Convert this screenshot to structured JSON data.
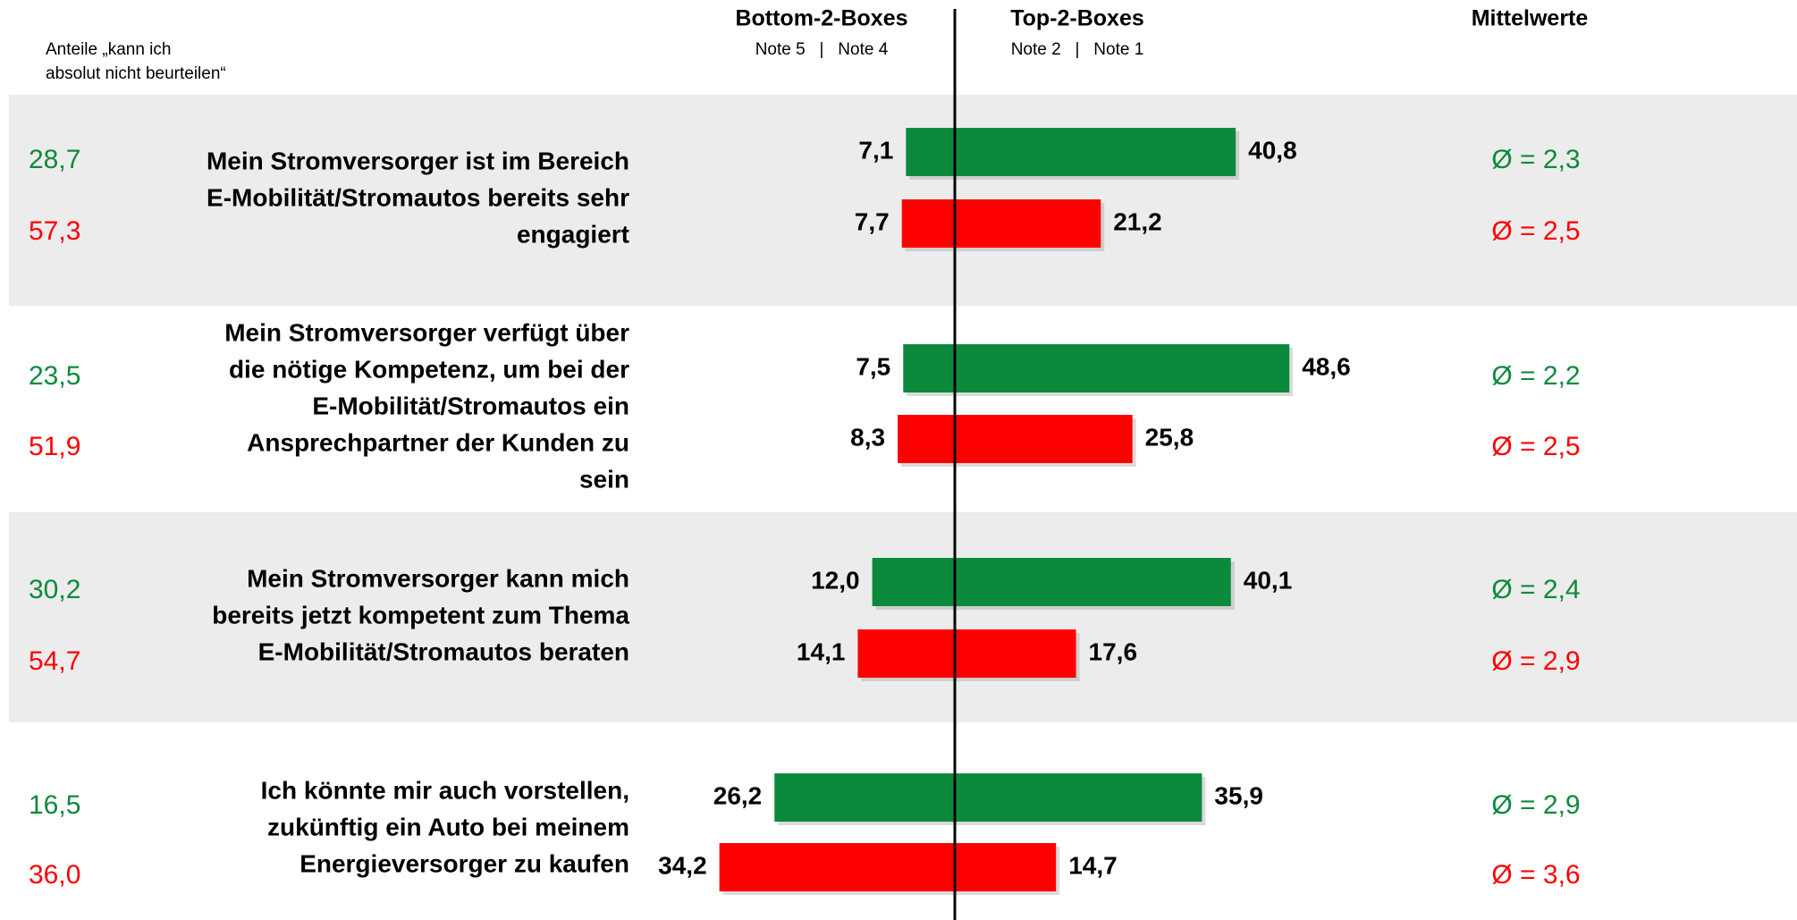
{
  "chart_data": {
    "type": "diverging_bar",
    "note": "Anteile „kann ich absolut nicht beurteilen“",
    "note_lines": [
      "Anteile „kann ich",
      "absolut nicht beurteilen“"
    ],
    "left_header": "Bottom-2-Boxes",
    "left_subheader": "Note 5   |   Note 4",
    "right_header": "Top-2-Boxes",
    "right_subheader": "Note 2   |   Note 1",
    "mean_header": "Mittelwerte",
    "categories": [
      [
        "Mein Stromversorger ist im Bereich",
        "E-Mobilität/Stromautos bereits sehr",
        "engagiert"
      ],
      [
        "Mein Stromversorger verfügt über",
        "die nötige Kompetenz, um bei der",
        "E-Mobilität/Stromautos ein",
        "Ansprechpartner der Kunden zu",
        "sein"
      ],
      [
        "Mein Stromversorger kann mich",
        "bereits jetzt kompetent zum Thema",
        "E-Mobilität/Stromautos beraten"
      ],
      [
        "Ich könnte mir auch vorstellen,",
        "zukünftig ein Auto bei meinem",
        "Energieversorger zu kaufen"
      ]
    ],
    "xlim": [
      -70,
      70
    ],
    "series": [
      {
        "color": "#0c8a3c",
        "bottom_values": [
          7.1,
          7.5,
          12.0,
          26.2
        ],
        "bottom_labels": [
          "7,1",
          "7,5",
          "12,0",
          "26,2"
        ],
        "values": [
          40.8,
          48.6,
          40.1,
          35.9
        ],
        "value_labels": [
          "40,8",
          "48,6",
          "40,1",
          "35,9"
        ],
        "unknown": [
          28.7,
          23.5,
          30.2,
          16.5
        ],
        "unknown_labels": [
          "28,7",
          "23,5",
          "30,2",
          "16,5"
        ],
        "mean": [
          2.3,
          2.2,
          2.4,
          2.9
        ],
        "mean_labels": [
          "Ø = 2,3",
          "Ø = 2,2",
          "Ø = 2,4",
          "Ø = 2,9"
        ]
      },
      {
        "color": "#ff0000",
        "bottom_values": [
          7.7,
          8.3,
          14.1,
          34.2
        ],
        "bottom_labels": [
          "7,7",
          "8,3",
          "14,1",
          "34,2"
        ],
        "values": [
          21.2,
          25.8,
          17.6,
          14.7
        ],
        "value_labels": [
          "21,2",
          "25,8",
          "17,6",
          "14,7"
        ],
        "unknown": [
          57.3,
          51.9,
          54.7,
          36.0
        ],
        "unknown_labels": [
          "57,3",
          "51,9",
          "54,7",
          "36,0"
        ],
        "mean": [
          2.5,
          2.5,
          2.9,
          3.6
        ],
        "mean_labels": [
          "Ø = 2,5",
          "Ø = 2,5",
          "Ø = 2,9",
          "Ø = 3,6"
        ]
      }
    ]
  }
}
